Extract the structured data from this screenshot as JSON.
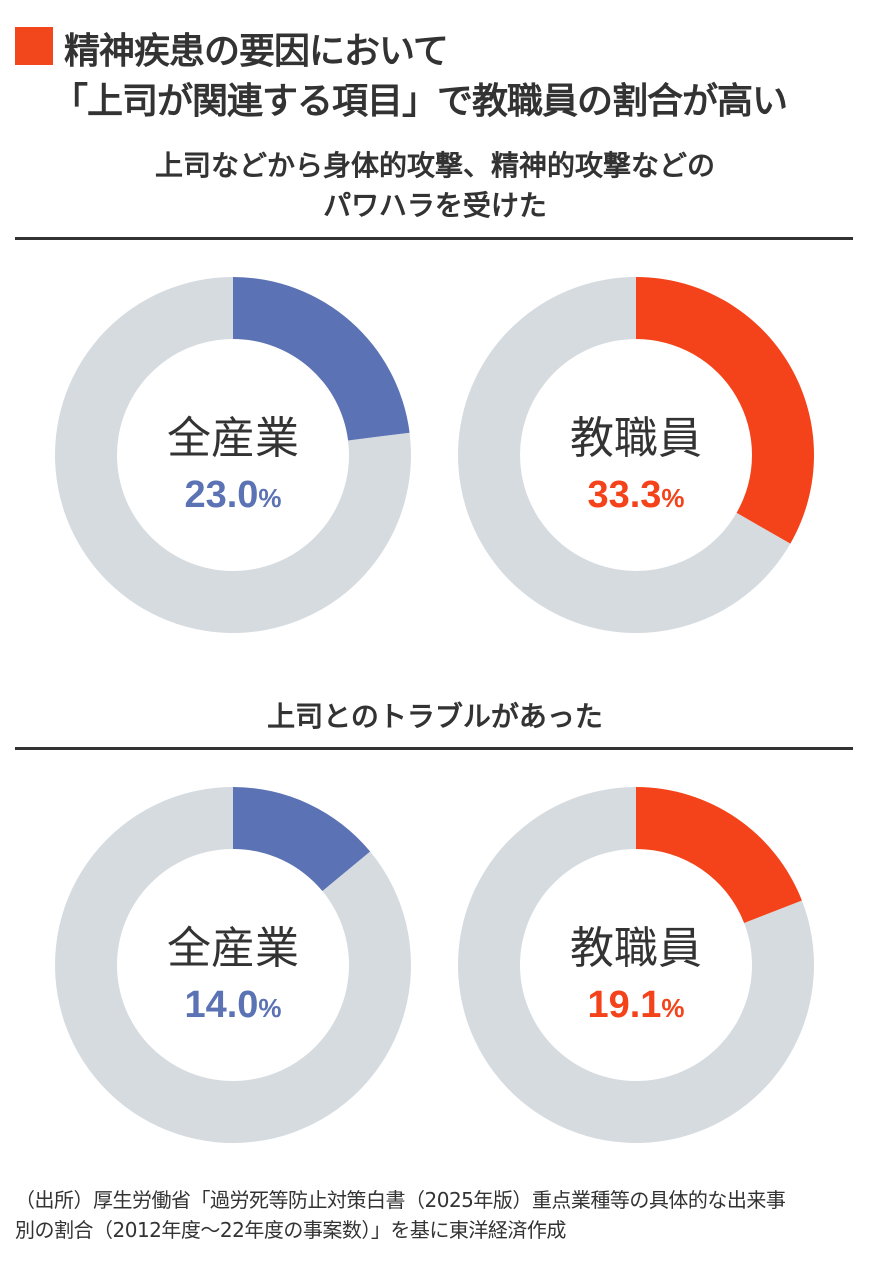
{
  "title": {
    "line1": "精神疾患の要因において",
    "line2": "「上司が関連する項目」で教職員の割合が高い"
  },
  "colors": {
    "all_industries": "#5b72b4",
    "teachers": "#f4431a",
    "remainder": "#d6dbe0",
    "text": "#333333"
  },
  "chart_data": [
    {
      "type": "pie",
      "title": "上司などから身体的攻撃、精神的攻撃などのパワハラを受けた",
      "title_line1": "上司などから身体的攻撃、精神的攻撃などの",
      "title_line2": "パワハラを受けた",
      "donuts": [
        {
          "name": "全産業",
          "value": 23.0,
          "label": "23.0",
          "unit": "%",
          "color": "#5b72b4"
        },
        {
          "name": "教職員",
          "value": 33.3,
          "label": "33.3",
          "unit": "%",
          "color": "#f4431a"
        }
      ]
    },
    {
      "type": "pie",
      "title": "上司とのトラブルがあった",
      "title_line1": "上司とのトラブルがあった",
      "donuts": [
        {
          "name": "全産業",
          "value": 14.0,
          "label": "14.0",
          "unit": "%",
          "color": "#5b72b4"
        },
        {
          "name": "教職員",
          "value": 19.1,
          "label": "19.1",
          "unit": "%",
          "color": "#f4431a"
        }
      ]
    }
  ],
  "source": {
    "line1": "（出所）厚生労働省「過労死等防止対策白書（2025年版）重点業種等の具体的な出来事",
    "line2": "別の割合（2012年度〜22年度の事案数）」を基に東洋経済作成"
  }
}
